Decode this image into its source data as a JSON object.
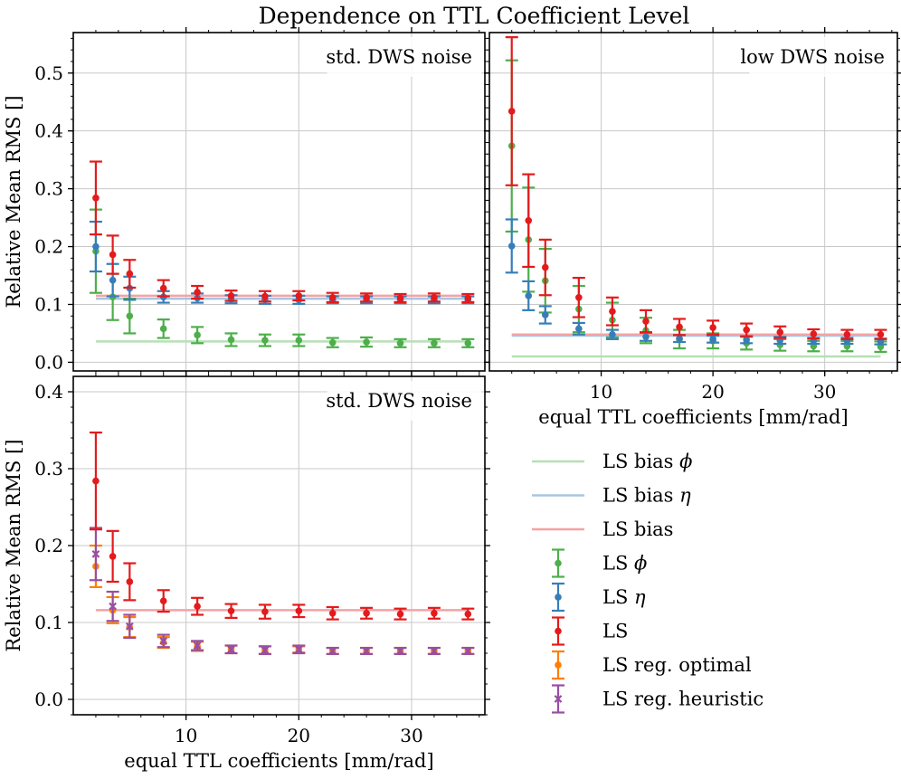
{
  "figure": {
    "title": "Dependence on TTL Coefficient Level",
    "colors": {
      "phi": "#4daf4a",
      "eta": "#377eb8",
      "ls": "#e41a1c",
      "reg_opt": "#ff7f00",
      "reg_heur": "#984ea3",
      "bias_phi": "#b7e0b4",
      "bias_eta": "#a9c5e2",
      "bias_ls": "#f4a3a4",
      "grid": "#c8c8c8"
    }
  },
  "legend": {
    "placement": "bottom-right",
    "entries": [
      {
        "key": "bias_phi",
        "label": "LS bias ϕ",
        "style": "line"
      },
      {
        "key": "bias_eta",
        "label": "LS bias η",
        "style": "line"
      },
      {
        "key": "bias_ls",
        "label": "LS bias",
        "style": "line"
      },
      {
        "key": "phi",
        "label": "LS ϕ",
        "style": "errorbar"
      },
      {
        "key": "eta",
        "label": "LS η",
        "style": "errorbar"
      },
      {
        "key": "ls",
        "label": "LS",
        "style": "errorbar"
      },
      {
        "key": "reg_opt",
        "label": "LS reg. optimal",
        "style": "errorbar"
      },
      {
        "key": "reg_heur",
        "label": "LS reg. heuristic",
        "style": "errorbar-x"
      }
    ]
  },
  "chart_data": [
    {
      "id": "top-left",
      "type": "scatter",
      "annotation": "std. DWS noise",
      "annotation_placement": "top-right",
      "xlabel": "",
      "ylabel": "Relative Mean RMS []",
      "xlim": [
        0,
        36.5
      ],
      "ylim": [
        -0.015,
        0.57
      ],
      "xticks": [
        10,
        20,
        30
      ],
      "xticklabels": [
        "",
        "",
        ""
      ],
      "yticks": [
        0.0,
        0.1,
        0.2,
        0.3,
        0.4,
        0.5
      ],
      "yticklabels": [
        "0.0",
        "0.1",
        "0.2",
        "0.3",
        "0.4",
        "0.5"
      ],
      "x": [
        2,
        3.5,
        5,
        8,
        11,
        14,
        17,
        20,
        23,
        26,
        29,
        32,
        35
      ],
      "bias_lines": [
        {
          "key": "bias_phi",
          "x": [
            2,
            35
          ],
          "y": [
            0.036,
            0.036
          ]
        },
        {
          "key": "bias_eta",
          "x": [
            2,
            35
          ],
          "y": [
            0.11,
            0.11
          ]
        },
        {
          "key": "bias_ls",
          "x": [
            2,
            35
          ],
          "y": [
            0.115,
            0.115
          ]
        }
      ],
      "series": [
        {
          "key": "phi",
          "marker": "dot",
          "values": [
            0.192,
            0.113,
            0.08,
            0.058,
            0.047,
            0.039,
            0.038,
            0.038,
            0.034,
            0.035,
            0.033,
            0.033,
            0.033
          ],
          "errors": [
            0.072,
            0.04,
            0.03,
            0.016,
            0.014,
            0.011,
            0.01,
            0.01,
            0.008,
            0.008,
            0.007,
            0.007,
            0.007
          ]
        },
        {
          "key": "eta",
          "marker": "dot",
          "values": [
            0.2,
            0.142,
            0.128,
            0.113,
            0.111,
            0.109,
            0.108,
            0.108,
            0.108,
            0.108,
            0.108,
            0.108,
            0.108
          ],
          "errors": [
            0.043,
            0.028,
            0.02,
            0.01,
            0.008,
            0.007,
            0.007,
            0.007,
            0.006,
            0.006,
            0.006,
            0.006,
            0.006
          ]
        },
        {
          "key": "ls",
          "marker": "dot",
          "values": [
            0.284,
            0.186,
            0.153,
            0.128,
            0.121,
            0.115,
            0.114,
            0.115,
            0.112,
            0.112,
            0.111,
            0.112,
            0.111
          ],
          "errors": [
            0.063,
            0.033,
            0.024,
            0.014,
            0.011,
            0.009,
            0.009,
            0.008,
            0.008,
            0.007,
            0.007,
            0.007,
            0.007
          ]
        }
      ]
    },
    {
      "id": "top-right",
      "type": "scatter",
      "annotation": "low DWS noise",
      "annotation_placement": "top-right",
      "xlabel": "equal TTL coefficients [mm/rad]",
      "ylabel": "",
      "xlim": [
        0,
        36.5
      ],
      "ylim": [
        -0.015,
        0.57
      ],
      "xticks": [
        10,
        20,
        30
      ],
      "xticklabels": [
        "10",
        "20",
        "30"
      ],
      "yticks": [
        0.0,
        0.1,
        0.2,
        0.3,
        0.4,
        0.5
      ],
      "yticklabels": [
        "",
        "",
        "",
        "",
        "",
        ""
      ],
      "x": [
        2,
        3.5,
        5,
        8,
        11,
        14,
        17,
        20,
        23,
        26,
        29,
        32,
        35
      ],
      "bias_lines": [
        {
          "key": "bias_phi",
          "x": [
            2,
            35
          ],
          "y": [
            0.01,
            0.01
          ]
        },
        {
          "key": "bias_eta",
          "x": [
            2,
            35
          ],
          "y": [
            0.046,
            0.046
          ]
        },
        {
          "key": "bias_ls",
          "x": [
            2,
            35
          ],
          "y": [
            0.048,
            0.048
          ]
        }
      ],
      "series": [
        {
          "key": "phi",
          "marker": "dot",
          "values": [
            0.374,
            0.212,
            0.141,
            0.092,
            0.073,
            0.055,
            0.04,
            0.037,
            0.033,
            0.03,
            0.028,
            0.028,
            0.027
          ],
          "errors": [
            0.148,
            0.09,
            0.055,
            0.04,
            0.03,
            0.022,
            0.016,
            0.013,
            0.011,
            0.01,
            0.009,
            0.009,
            0.009
          ]
        },
        {
          "key": "eta",
          "marker": "dot",
          "values": [
            0.201,
            0.115,
            0.082,
            0.058,
            0.048,
            0.044,
            0.041,
            0.04,
            0.039,
            0.038,
            0.037,
            0.037,
            0.036
          ],
          "errors": [
            0.046,
            0.025,
            0.015,
            0.01,
            0.008,
            0.007,
            0.006,
            0.006,
            0.006,
            0.006,
            0.005,
            0.005,
            0.005
          ]
        },
        {
          "key": "ls",
          "marker": "dot",
          "values": [
            0.434,
            0.245,
            0.164,
            0.112,
            0.088,
            0.071,
            0.061,
            0.06,
            0.056,
            0.052,
            0.049,
            0.048,
            0.048
          ],
          "errors": [
            0.128,
            0.08,
            0.048,
            0.034,
            0.024,
            0.019,
            0.014,
            0.012,
            0.011,
            0.01,
            0.008,
            0.008,
            0.008
          ]
        }
      ]
    },
    {
      "id": "bottom-left",
      "type": "scatter",
      "annotation": "std. DWS noise",
      "annotation_placement": "top-right",
      "xlabel": "equal TTL coefficients [mm/rad]",
      "ylabel": "Relative Mean RMS []",
      "xlim": [
        0,
        36.5
      ],
      "ylim": [
        -0.02,
        0.42
      ],
      "xticks": [
        10,
        20,
        30
      ],
      "xticklabels": [
        "10",
        "20",
        "30"
      ],
      "yticks": [
        0.0,
        0.1,
        0.2,
        0.3,
        0.4
      ],
      "yticklabels": [
        "0.0",
        "0.1",
        "0.2",
        "0.3",
        "0.4"
      ],
      "x": [
        2,
        3.5,
        5,
        8,
        11,
        14,
        17,
        20,
        23,
        26,
        29,
        32,
        35
      ],
      "bias_lines": [
        {
          "key": "bias_ls",
          "x": [
            2,
            35
          ],
          "y": [
            0.116,
            0.116
          ]
        }
      ],
      "series": [
        {
          "key": "reg_opt",
          "marker": "dot",
          "values": [
            0.173,
            0.116,
            0.094,
            0.074,
            0.069,
            0.065,
            0.064,
            0.065,
            0.063,
            0.063,
            0.063,
            0.063,
            0.063
          ],
          "errors": [
            0.027,
            0.017,
            0.013,
            0.007,
            0.006,
            0.005,
            0.005,
            0.004,
            0.004,
            0.004,
            0.004,
            0.004,
            0.004
          ]
        },
        {
          "key": "reg_heur",
          "marker": "x",
          "values": [
            0.189,
            0.121,
            0.095,
            0.076,
            0.07,
            0.065,
            0.064,
            0.065,
            0.063,
            0.063,
            0.063,
            0.063,
            0.063
          ],
          "errors": [
            0.034,
            0.019,
            0.015,
            0.008,
            0.006,
            0.005,
            0.005,
            0.005,
            0.004,
            0.004,
            0.004,
            0.004,
            0.004
          ]
        },
        {
          "key": "ls",
          "marker": "dot",
          "values": [
            0.284,
            0.186,
            0.153,
            0.128,
            0.121,
            0.115,
            0.114,
            0.115,
            0.112,
            0.112,
            0.111,
            0.112,
            0.111
          ],
          "errors": [
            0.063,
            0.033,
            0.024,
            0.014,
            0.011,
            0.009,
            0.009,
            0.008,
            0.008,
            0.007,
            0.007,
            0.007,
            0.007
          ]
        }
      ]
    }
  ]
}
